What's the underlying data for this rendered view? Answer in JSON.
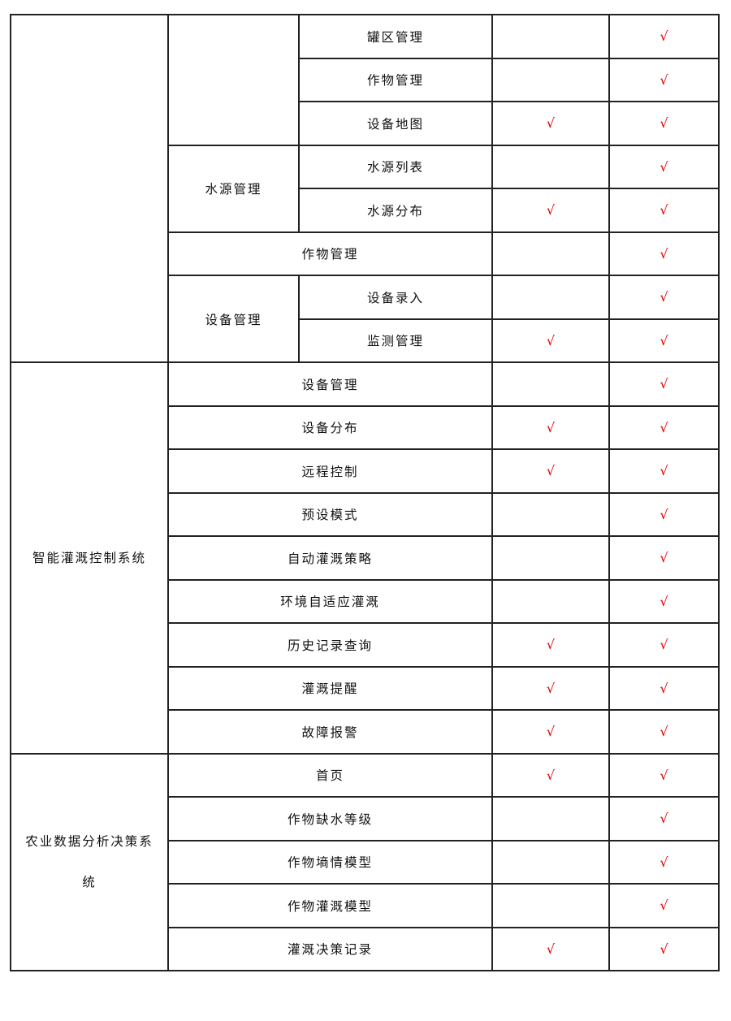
{
  "check_mark": "√",
  "colors": {
    "check": "#e00000",
    "border": "#222222"
  },
  "systems": [
    {
      "label": "",
      "rows": 8
    },
    {
      "label": "智能灌溉控制系统",
      "rows": 9
    },
    {
      "label": "农业数据分析决策系统",
      "rows": 5
    }
  ],
  "rows": [
    {
      "group": "",
      "group_rows": 3,
      "item": "罐区管理",
      "col4": false,
      "col5": true
    },
    {
      "item": "作物管理",
      "col4": false,
      "col5": true
    },
    {
      "item": "设备地图",
      "col4": true,
      "col5": true
    },
    {
      "group": "水源管理",
      "group_rows": 2,
      "item": "水源列表",
      "col4": false,
      "col5": true
    },
    {
      "item": "水源分布",
      "col4": true,
      "col5": true
    },
    {
      "span_item": "作物管理",
      "col4": false,
      "col5": true
    },
    {
      "group": "设备管理",
      "group_rows": 2,
      "item": "设备录入",
      "col4": false,
      "col5": true
    },
    {
      "item": "监测管理",
      "col4": true,
      "col5": true
    },
    {
      "span_item": "设备管理",
      "col4": false,
      "col5": true
    },
    {
      "span_item": "设备分布",
      "col4": true,
      "col5": true
    },
    {
      "span_item": "远程控制",
      "col4": true,
      "col5": true
    },
    {
      "span_item": "预设模式",
      "col4": false,
      "col5": true
    },
    {
      "span_item": "自动灌溉策略",
      "col4": false,
      "col5": true
    },
    {
      "span_item": "环境自适应灌溉",
      "col4": false,
      "col5": true
    },
    {
      "span_item": "历史记录查询",
      "col4": true,
      "col5": true
    },
    {
      "span_item": "灌溉提醒",
      "col4": true,
      "col5": true
    },
    {
      "span_item": "故障报警",
      "col4": true,
      "col5": true
    },
    {
      "span_item": "首页",
      "col4": true,
      "col5": true
    },
    {
      "span_item": "作物缺水等级",
      "col4": false,
      "col5": true
    },
    {
      "span_item": "作物墒情模型",
      "col4": false,
      "col5": true
    },
    {
      "span_item": "作物灌溉模型",
      "col4": false,
      "col5": true
    },
    {
      "span_item": "灌溉决策记录",
      "col4": true,
      "col5": true
    }
  ]
}
